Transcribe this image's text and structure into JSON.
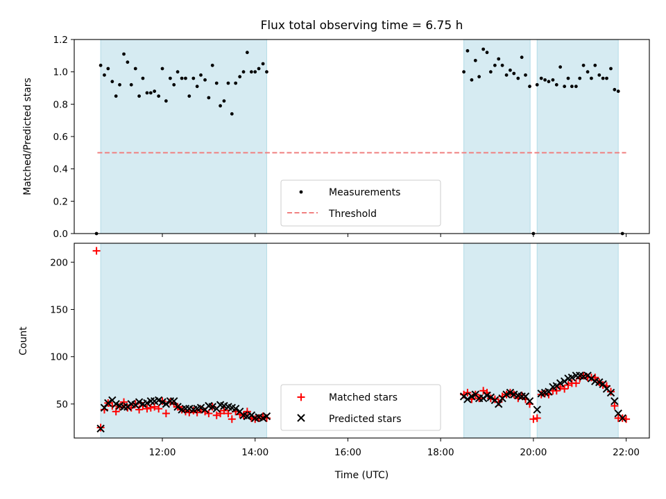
{
  "colors": {
    "band": "#add8e6",
    "measurement": "#000000",
    "threshold": "#f08080",
    "matched": "#ff0000",
    "predicted": "#000000"
  },
  "chart_data": [
    {
      "type": "scatter",
      "title": "Flux total observing time = 6.75 h",
      "xlabel": "",
      "ylabel": "Matched/Predicted stars",
      "xlim": [
        10.1,
        22.5
      ],
      "ylim": [
        0,
        1.2
      ],
      "yticks": [
        0.0,
        0.2,
        0.4,
        0.6,
        0.8,
        1.0,
        1.2
      ],
      "ytick_labels": [
        "0.0",
        "0.2",
        "0.4",
        "0.6",
        "0.8",
        "1.0",
        "1.2"
      ],
      "xticks": [
        12,
        14,
        16,
        18,
        20,
        22
      ],
      "show_xtick_labels": false,
      "grid": false,
      "legend_position": "bottom-center",
      "shaded_intervals": [
        [
          10.67,
          14.25
        ],
        [
          18.5,
          19.93
        ],
        [
          20.08,
          21.83
        ]
      ],
      "threshold": {
        "name": "Threshold",
        "value": 0.5,
        "x": [
          10.6,
          22.0
        ]
      },
      "series": [
        {
          "name": "Measurements",
          "x": [
            10.58,
            10.67,
            10.75,
            10.83,
            10.92,
            11.0,
            11.08,
            11.17,
            11.25,
            11.33,
            11.42,
            11.5,
            11.58,
            11.67,
            11.75,
            11.83,
            11.92,
            12.0,
            12.08,
            12.17,
            12.25,
            12.33,
            12.42,
            12.5,
            12.58,
            12.67,
            12.75,
            12.83,
            12.92,
            13.0,
            13.08,
            13.17,
            13.25,
            13.33,
            13.42,
            13.5,
            13.58,
            13.67,
            13.75,
            13.83,
            13.92,
            14.0,
            14.08,
            14.17,
            14.25,
            18.5,
            18.58,
            18.67,
            18.75,
            18.83,
            18.92,
            19.0,
            19.08,
            19.17,
            19.25,
            19.33,
            19.42,
            19.5,
            19.58,
            19.67,
            19.75,
            19.83,
            19.92,
            20.0,
            20.08,
            20.17,
            20.25,
            20.33,
            20.42,
            20.5,
            20.58,
            20.67,
            20.75,
            20.83,
            20.92,
            21.0,
            21.08,
            21.17,
            21.25,
            21.33,
            21.42,
            21.5,
            21.58,
            21.67,
            21.75,
            21.83,
            21.92
          ],
          "y": [
            0.0,
            1.04,
            0.98,
            1.02,
            0.94,
            0.85,
            0.92,
            1.11,
            1.06,
            0.92,
            1.02,
            0.85,
            0.96,
            0.87,
            0.87,
            0.88,
            0.85,
            1.02,
            0.82,
            0.96,
            0.92,
            1.0,
            0.96,
            0.96,
            0.85,
            0.96,
            0.91,
            0.98,
            0.95,
            0.84,
            1.04,
            0.93,
            0.79,
            0.82,
            0.93,
            0.74,
            0.93,
            0.97,
            1.0,
            1.12,
            1.0,
            1.0,
            1.02,
            1.05,
            1.0,
            1.0,
            1.13,
            0.95,
            1.07,
            0.97,
            1.14,
            1.12,
            1.0,
            1.04,
            1.08,
            1.04,
            0.98,
            1.01,
            0.99,
            0.96,
            1.09,
            0.98,
            0.91,
            0.0,
            0.92,
            0.96,
            0.95,
            0.94,
            0.95,
            0.92,
            1.03,
            0.91,
            0.96,
            0.91,
            0.91,
            0.96,
            1.04,
            1.0,
            0.96,
            1.04,
            0.98,
            0.96,
            0.96,
            1.02,
            0.89,
            0.88,
            0.0
          ]
        }
      ]
    },
    {
      "type": "scatter",
      "title": "",
      "xlabel": "Time (UTC)",
      "ylabel": "Count",
      "xlim": [
        10.1,
        22.5
      ],
      "ylim": [
        14,
        220
      ],
      "yticks": [
        50,
        100,
        150,
        200
      ],
      "ytick_labels": [
        "50",
        "100",
        "150",
        "200"
      ],
      "xticks": [
        12,
        14,
        16,
        18,
        20,
        22
      ],
      "xtick_labels": [
        "12:00",
        "14:00",
        "16:00",
        "18:00",
        "20:00",
        "22:00"
      ],
      "grid": false,
      "legend_position": "bottom-center",
      "shaded_intervals": [
        [
          10.67,
          14.25
        ],
        [
          18.5,
          19.93
        ],
        [
          20.08,
          21.83
        ]
      ],
      "series": [
        {
          "name": "Matched stars",
          "x": [
            10.58,
            10.67,
            10.75,
            10.83,
            10.92,
            11.0,
            11.08,
            11.17,
            11.25,
            11.33,
            11.42,
            11.5,
            11.58,
            11.67,
            11.75,
            11.83,
            11.92,
            12.0,
            12.08,
            12.17,
            12.25,
            12.33,
            12.42,
            12.5,
            12.58,
            12.67,
            12.75,
            12.83,
            12.92,
            13.0,
            13.08,
            13.17,
            13.25,
            13.33,
            13.42,
            13.5,
            13.58,
            13.67,
            13.75,
            13.83,
            13.92,
            14.0,
            14.08,
            14.17,
            14.25,
            18.5,
            18.58,
            18.67,
            18.75,
            18.83,
            18.92,
            19.0,
            19.08,
            19.17,
            19.25,
            19.33,
            19.42,
            19.5,
            19.58,
            19.67,
            19.75,
            19.83,
            19.92,
            20.0,
            20.08,
            20.17,
            20.25,
            20.33,
            20.42,
            20.5,
            20.58,
            20.67,
            20.75,
            20.83,
            20.92,
            21.0,
            21.08,
            21.17,
            21.25,
            21.33,
            21.42,
            21.5,
            21.58,
            21.67,
            21.75,
            21.83,
            21.92,
            22.0
          ],
          "y": [
            212,
            25,
            44,
            51,
            48,
            42,
            47,
            52,
            46,
            46,
            50,
            44,
            48,
            45,
            46,
            47,
            45,
            53,
            40,
            52,
            50,
            47,
            44,
            42,
            41,
            43,
            41,
            44,
            42,
            40,
            47,
            38,
            40,
            43,
            40,
            34,
            42,
            39,
            38,
            42,
            35,
            34,
            35,
            37,
            35,
            60,
            62,
            55,
            60,
            56,
            64,
            62,
            56,
            55,
            52,
            58,
            60,
            62,
            60,
            56,
            59,
            55,
            50,
            34,
            35,
            60,
            61,
            60,
            64,
            64,
            68,
            66,
            70,
            72,
            72,
            77,
            80,
            78,
            78,
            78,
            73,
            70,
            69,
            63,
            48,
            35,
            35,
            34
          ]
        },
        {
          "name": "Predicted stars",
          "x": [
            10.67,
            10.75,
            10.83,
            10.92,
            11.0,
            11.08,
            11.17,
            11.25,
            11.33,
            11.42,
            11.5,
            11.58,
            11.67,
            11.75,
            11.83,
            11.92,
            12.0,
            12.08,
            12.17,
            12.25,
            12.33,
            12.42,
            12.5,
            12.58,
            12.67,
            12.75,
            12.83,
            12.92,
            13.0,
            13.08,
            13.17,
            13.25,
            13.33,
            13.42,
            13.5,
            13.58,
            13.67,
            13.75,
            13.83,
            13.92,
            14.0,
            14.08,
            14.17,
            14.25,
            18.5,
            18.58,
            18.67,
            18.75,
            18.83,
            18.92,
            19.0,
            19.08,
            19.17,
            19.25,
            19.33,
            19.42,
            19.5,
            19.58,
            19.67,
            19.75,
            19.83,
            19.92,
            20.08,
            20.17,
            20.25,
            20.33,
            20.42,
            20.5,
            20.58,
            20.67,
            20.75,
            20.83,
            20.92,
            21.0,
            21.08,
            21.17,
            21.25,
            21.33,
            21.42,
            21.5,
            21.58,
            21.67,
            21.75,
            21.83,
            21.92
          ],
          "y": [
            24,
            46,
            51,
            54,
            50,
            48,
            47,
            47,
            50,
            49,
            52,
            50,
            51,
            53,
            53,
            54,
            52,
            50,
            53,
            53,
            47,
            44,
            45,
            45,
            44,
            45,
            46,
            44,
            48,
            47,
            45,
            49,
            48,
            47,
            46,
            45,
            42,
            38,
            37,
            38,
            35,
            36,
            35,
            37,
            58,
            55,
            58,
            60,
            56,
            56,
            59,
            57,
            54,
            50,
            56,
            60,
            62,
            60,
            59,
            58,
            58,
            53,
            44,
            61,
            62,
            63,
            68,
            69,
            72,
            74,
            77,
            78,
            80,
            80,
            79,
            80,
            77,
            74,
            73,
            71,
            66,
            62,
            53,
            40,
            35
          ]
        }
      ]
    }
  ]
}
